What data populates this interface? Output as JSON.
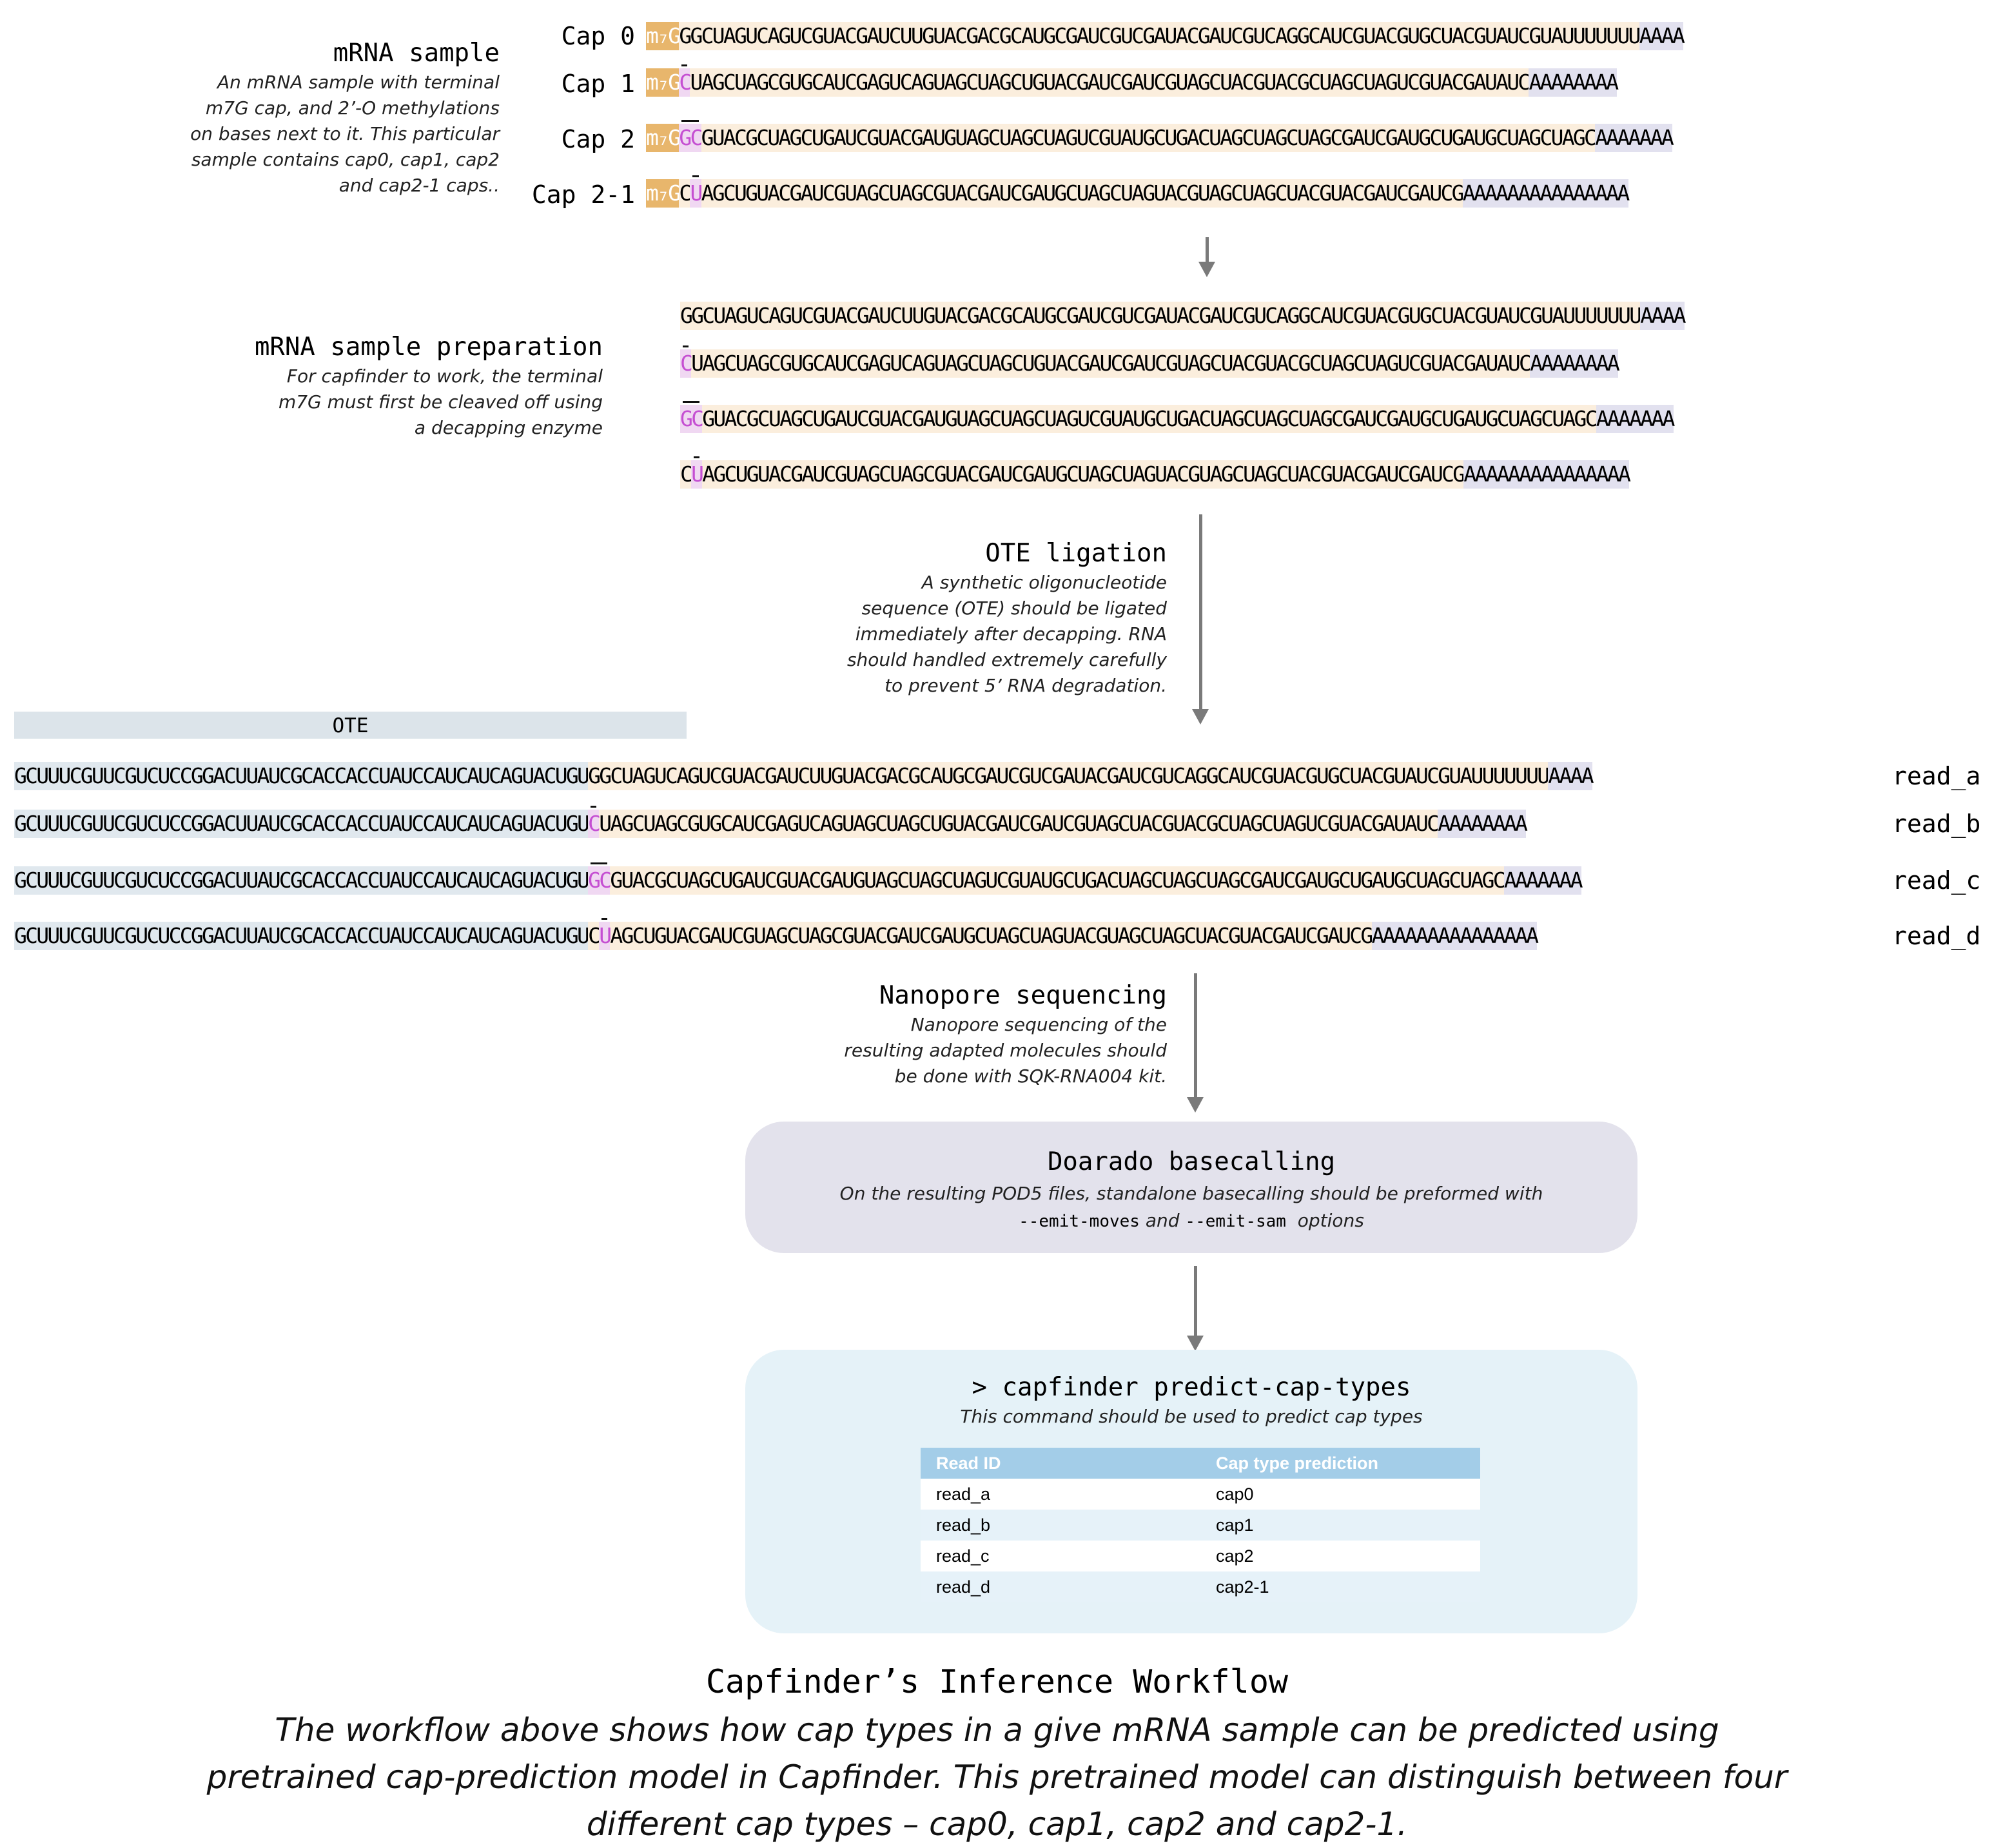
{
  "sample": {
    "title": "mRNA sample",
    "desc": "An mRNA sample with terminal m7G cap, and 2’-O methylations on bases next to it. This particular sample contains cap0, cap1, cap2 and cap2-1 caps..",
    "caps": [
      {
        "label": "Cap 0",
        "m7g": "m₇G",
        "mod": "",
        "body": "GGCUAGUCAGUCGUACGAUCUUGUACGACGCAUGCGAUCGUCGAUACGAUCGUCAGGCAUCGUACGUGCUACGUAUCGUAUUUUUUU",
        "polya": "AAAA"
      },
      {
        "label": "Cap 1",
        "m7g": "m₇G",
        "mod": "C",
        "body": "UAGCUAGCGUGCAUCGAGUCAGUAGCUAGCUGUACGAUCGAUCGUAGCUACGUACGCUAGCUAGUCGUACGAUAUC",
        "polya": "AAAAAAAA"
      },
      {
        "label": "Cap 2",
        "m7g": "m₇G",
        "mod": "GC",
        "body": "GUACGCUAGCUGAUCGUACGAUGUAGCUAGCUAGUCGUAUGCUGACUAGCUAGCUAGCGAUCGAUGCUGAUGCUAGCUAGC",
        "polya": "AAAAAAA"
      },
      {
        "label": "Cap 2-1",
        "m7g": "m₇G",
        "pre": "C",
        "mod": "U",
        "body": "AGCUGUACGAUCGUAGCUAGCGUACGAUCGAUGCUAGCUAGUACGUAGCUAGCUACGUACGAUCGAUCG",
        "polya": "AAAAAAAAAAAAAAA"
      }
    ]
  },
  "prep": {
    "title": "mRNA sample preparation",
    "desc": "For capfinder to work, the terminal m7G must first be cleaved off using a decapping enzyme"
  },
  "ligation": {
    "title": "OTE ligation",
    "desc": "A synthetic oligonucleotide sequence (OTE) should be ligated immediately after decapping. RNA should handled extremely carefully to prevent 5’ RNA degradation."
  },
  "ote": {
    "label": "OTE",
    "seq": "GCUUUCGUUCGUCUCCGGACUUAUCGCACCACCUAUCCAUCAUCAGUACUGU"
  },
  "reads": [
    "read_a",
    "read_b",
    "read_c",
    "read_d"
  ],
  "nanopore": {
    "title": "Nanopore sequencing",
    "desc": "Nanopore sequencing of the resulting adapted molecules should be done with SQK-RNA004 kit."
  },
  "basecall": {
    "title": "Doarado basecalling",
    "desc_pre": "On the resulting POD5 files, standalone basecalling should be preformed with",
    "flag1": "--emit-moves",
    "mid": " and ",
    "flag2": "--emit-sam",
    "desc_post": "  options"
  },
  "predict": {
    "command": "> capfinder predict-cap-types",
    "desc": "This command should be used to predict cap types",
    "table": {
      "headers": [
        "Read ID",
        "Cap type prediction"
      ],
      "rows": [
        [
          "read_a",
          "cap0"
        ],
        [
          "read_b",
          "cap1"
        ],
        [
          "read_c",
          "cap2"
        ],
        [
          "read_d",
          "cap2-1"
        ]
      ]
    }
  },
  "caption": {
    "title": "Capfinder’s Inference Workflow",
    "text": "The workflow above shows how cap types in a give mRNA sample can be predicted using pretrained cap-prediction model in Capfinder. This pretrained model can distinguish between four different cap types – cap0, cap1, cap2 and cap2-1."
  },
  "colors": {
    "m7g": "#e8b66c",
    "body": "#fbeedd",
    "polya": "#e2e1ef",
    "ote": "#e0e8ee",
    "modified_base": "#c54fd2",
    "basecall_box": "#e3e2ec",
    "predict_box": "#e5f2f8",
    "table_header": "#a3cde8",
    "arrow": "#7a7a7a"
  }
}
